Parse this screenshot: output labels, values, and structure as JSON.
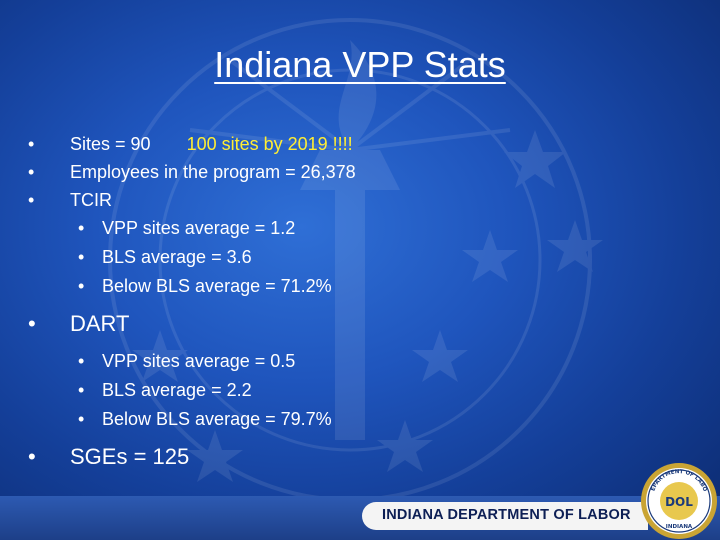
{
  "slide": {
    "title": "Indiana VPP Stats",
    "sites_line": "Sites = 90",
    "sites_goal": "100 sites by 2019 !!!!",
    "employees": "Employees in the program = 26,378",
    "tcir": {
      "label": "TCIR",
      "items": [
        "VPP sites average = 1.2",
        "BLS average = 3.6",
        "Below BLS average = 71.2%"
      ]
    },
    "dart": {
      "label": "DART",
      "items": [
        "VPP sites average = 0.5",
        "BLS average = 2.2",
        "Below BLS average = 79.7%"
      ]
    },
    "sges": "SGEs = 125"
  },
  "footer": {
    "department": "INDIANA DEPARTMENT OF LABOR",
    "seal_top_text": "DEPARTMENT OF LABOR",
    "seal_center_text": "DOL",
    "seal_bottom_text": "INDIANA"
  },
  "colors": {
    "background": "#1f55bd",
    "text": "#ffffff",
    "highlight": "#ffee33",
    "footer_text": "#0d1f55"
  }
}
